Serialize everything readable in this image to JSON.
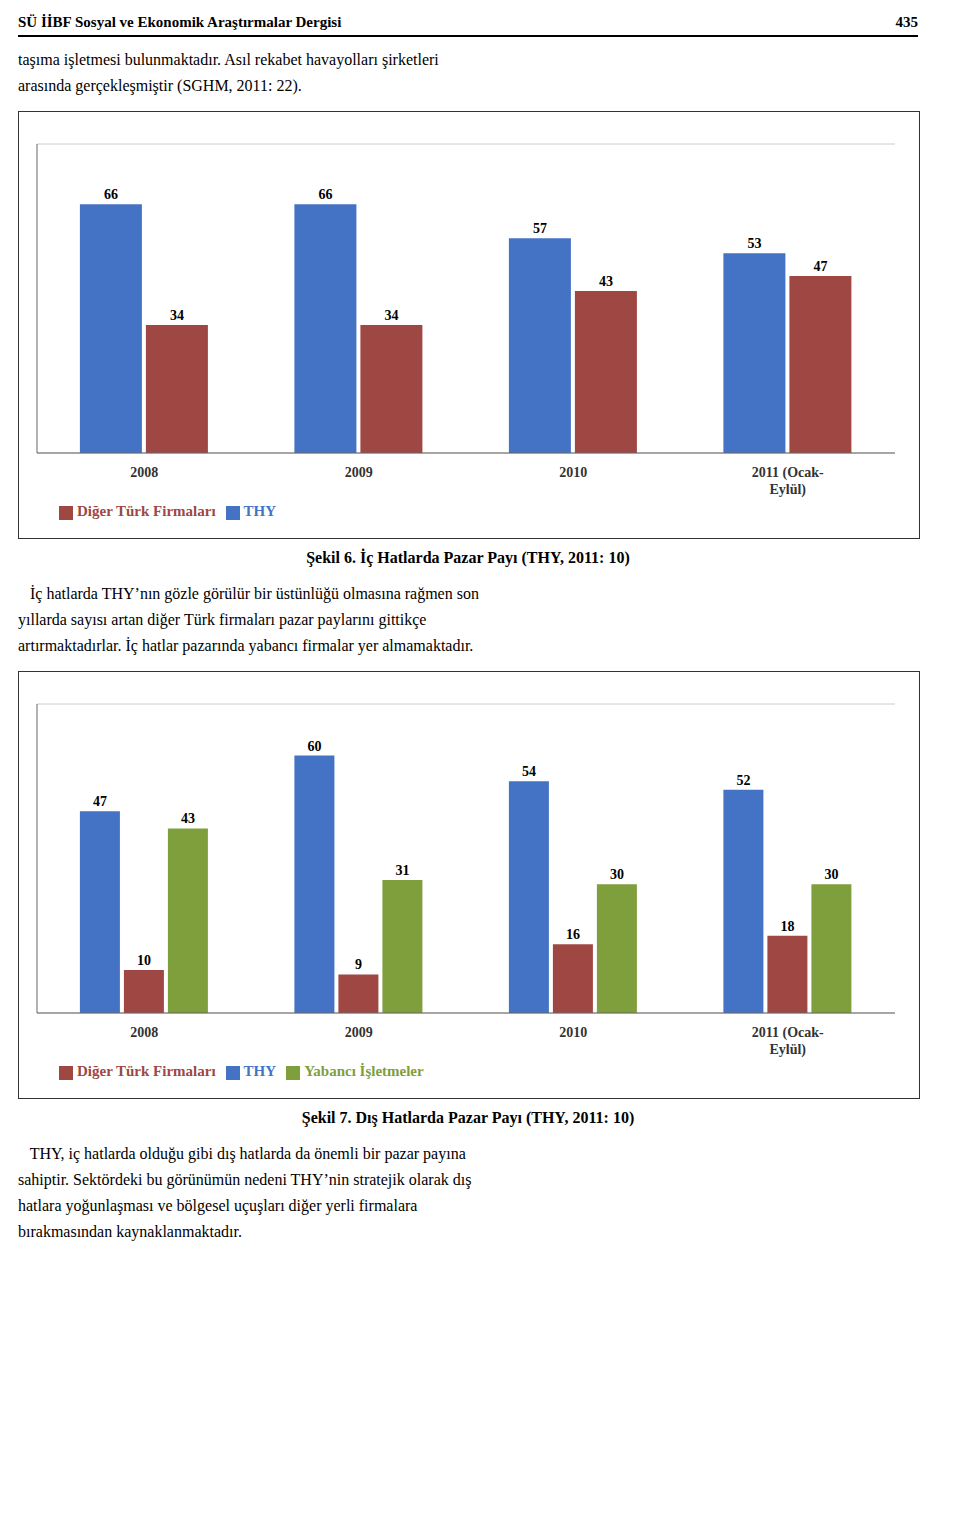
{
  "chart_data": [
    {
      "type": "bar",
      "title": "Şekil 6. İç Hatlarda Pazar Payı (THY, 2011: 10)",
      "annotations": [
        "SÜ İİBF Sosyal ve Ekonomik Araştırmalar Dergisi",
        "435",
        "taşıma işletmesi bulunmaktadır. Asıl rekabet havayolları şirketleri",
        "arasında gerçekleşmiştir (SGHM, 2011: 22).",
        "   İç hatlarda THY’nın gözle görülür bir üstünlüğü olmasına rağmen son",
        "yıllarda sayısı artan diğer Türk firmaları pazar paylarını gittikçe",
        "artırmaktadırlar. İç hatlar pazarında yabancı firmalar yer almamaktadır."
      ],
      "categories": [
        "2008",
        "2009",
        "2010",
        "2011 (Ocak-\nEylül)"
      ],
      "series": [
        {
          "name": "THY",
          "color": "#4472C4",
          "values": [
            66,
            66,
            57,
            53
          ]
        },
        {
          "name": "Diğer Türk Firmaları",
          "color": "#9E4743",
          "values": [
            34,
            34,
            43,
            47
          ]
        }
      ],
      "ylim": [
        0,
        82
      ],
      "yticks": [
        0,
        20,
        40,
        60,
        80
      ],
      "grid": true,
      "legend": "bottom",
      "data_labels": true,
      "tick_labels": "x"
    },
    {
      "type": "bar",
      "title": "Şekil 7. Dış Hatlarda Pazar Payı (THY, 2011: 10)",
      "annotations": [
        "   THY, iç hatlarda olduğu gibi dış hatlarda da önemli bir pazar payına",
        "sahiptir. Sektördeki bu görünümün nedeni THY’nin stratejik olarak dış",
        "hatlara yoğunlaşması ve bölgesel uçuşları diğer yerli firmalara",
        "bırakmasından kaynaklanmaktadır."
      ],
      "categories": [
        "2008",
        "2009",
        "2010",
        "2011 (Ocak-\nEylül)"
      ],
      "series": [
        {
          "name": "THY",
          "color": "#4472C4",
          "values": [
            47,
            60,
            54,
            52
          ]
        },
        {
          "name": "Diğer Türk Firmaları",
          "color": "#9E4743",
          "values": [
            10,
            9,
            16,
            18
          ]
        },
        {
          "name": "Yabancı İşletmeler",
          "color": "#7F9E3C",
          "values": [
            43,
            31,
            30,
            30
          ]
        }
      ],
      "ylim": [
        0,
        72
      ],
      "yticks": [
        0,
        20,
        40,
        60
      ],
      "grid": true,
      "legend": "bottom",
      "data_labels": true,
      "tick_labels": "x"
    }
  ]
}
